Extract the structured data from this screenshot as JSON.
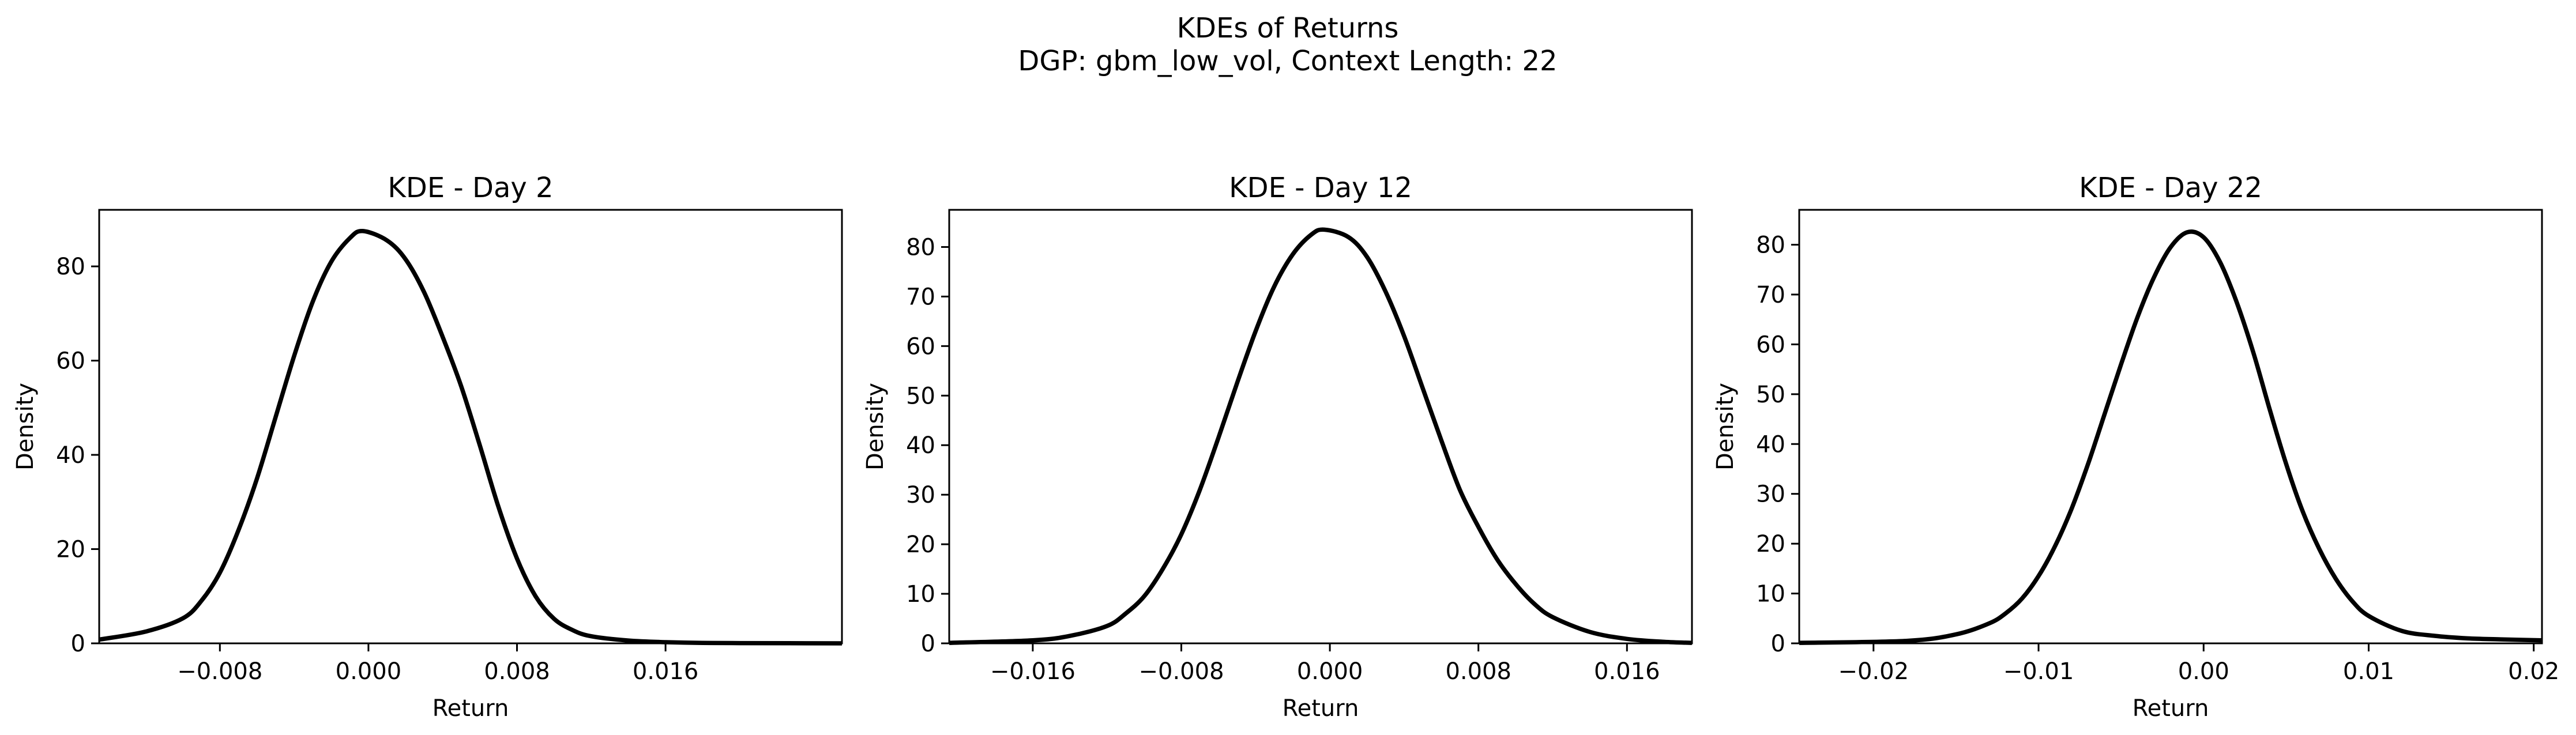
{
  "figure": {
    "title": "KDEs of Returns",
    "subtitle": "DGP: gbm_low_vol, Context Length: 22"
  },
  "chart_data": [
    {
      "type": "line",
      "title": "KDE - Day 2",
      "xlabel": "Return",
      "ylabel": "Density",
      "xlim": [
        -0.0145,
        0.0255
      ],
      "ylim": [
        0,
        92
      ],
      "xticks": [
        -0.008,
        0.0,
        0.008,
        0.016
      ],
      "xtick_labels": [
        "−0.008",
        "0.000",
        "0.008",
        "0.016"
      ],
      "yticks": [
        0,
        20,
        40,
        60,
        80
      ],
      "ytick_labels": [
        "0",
        "20",
        "40",
        "60",
        "80"
      ],
      "grid": false,
      "series": [
        {
          "color": "#000000",
          "x": [
            -0.0145,
            -0.012,
            -0.01,
            -0.009,
            -0.008,
            -0.007,
            -0.006,
            -0.005,
            -0.004,
            -0.003,
            -0.002,
            -0.001,
            -0.0003,
            0.001,
            0.002,
            0.003,
            0.004,
            0.005,
            0.006,
            0.007,
            0.008,
            0.009,
            0.01,
            0.011,
            0.012,
            0.014,
            0.016,
            0.018,
            0.02,
            0.0255
          ],
          "y": [
            0.8,
            2.5,
            5.3,
            9.0,
            15.0,
            24.0,
            35.0,
            48.0,
            61.0,
            72.5,
            81.0,
            86.0,
            87.5,
            85.5,
            81.5,
            74.5,
            65.0,
            54.5,
            42.0,
            29.0,
            18.0,
            10.0,
            5.2,
            2.8,
            1.5,
            0.6,
            0.25,
            0.1,
            0.05,
            0.0
          ]
        }
      ]
    },
    {
      "type": "line",
      "title": "KDE - Day 12",
      "xlabel": "Return",
      "ylabel": "Density",
      "xlim": [
        -0.0205,
        0.0195
      ],
      "ylim": [
        0,
        87.5
      ],
      "xticks": [
        -0.016,
        -0.008,
        0.0,
        0.008,
        0.016
      ],
      "xtick_labels": [
        "−0.016",
        "−0.008",
        "0.000",
        "0.008",
        "0.016"
      ],
      "yticks": [
        0,
        10,
        20,
        30,
        40,
        50,
        60,
        70,
        80
      ],
      "ytick_labels": [
        "0",
        "10",
        "20",
        "30",
        "40",
        "50",
        "60",
        "70",
        "80"
      ],
      "grid": false,
      "series": [
        {
          "color": "#000000",
          "x": [
            -0.0205,
            -0.016,
            -0.014,
            -0.012,
            -0.011,
            -0.01,
            -0.009,
            -0.008,
            -0.007,
            -0.006,
            -0.005,
            -0.004,
            -0.003,
            -0.002,
            -0.001,
            -0.0003,
            0.001,
            0.002,
            0.003,
            0.004,
            0.005,
            0.006,
            0.007,
            0.008,
            0.009,
            0.01,
            0.011,
            0.012,
            0.014,
            0.016,
            0.018,
            0.0195
          ],
          "y": [
            0.1,
            0.6,
            1.5,
            3.5,
            6.0,
            9.5,
            15.0,
            22.0,
            31.0,
            41.5,
            52.5,
            63.0,
            72.0,
            78.5,
            82.5,
            83.5,
            82.0,
            78.0,
            71.0,
            62.0,
            51.5,
            41.0,
            31.0,
            23.5,
            17.0,
            12.0,
            8.0,
            5.3,
            2.3,
            0.9,
            0.3,
            0.1
          ]
        }
      ]
    },
    {
      "type": "line",
      "title": "KDE - Day 22",
      "xlabel": "Return",
      "ylabel": "Density",
      "xlim": [
        -0.0245,
        0.0205
      ],
      "ylim": [
        0,
        87
      ],
      "xticks": [
        -0.02,
        -0.01,
        0.0,
        0.01,
        0.02
      ],
      "xtick_labels": [
        "−0.02",
        "−0.01",
        "0.00",
        "0.01",
        "0.02"
      ],
      "yticks": [
        0,
        10,
        20,
        30,
        40,
        50,
        60,
        70,
        80
      ],
      "ytick_labels": [
        "0",
        "10",
        "20",
        "30",
        "40",
        "50",
        "60",
        "70",
        "80"
      ],
      "grid": false,
      "series": [
        {
          "color": "#000000",
          "x": [
            -0.0245,
            -0.018,
            -0.015,
            -0.013,
            -0.012,
            -0.011,
            -0.01,
            -0.009,
            -0.008,
            -0.007,
            -0.006,
            -0.005,
            -0.004,
            -0.003,
            -0.002,
            -0.001,
            0.0,
            0.001,
            0.002,
            0.003,
            0.004,
            0.005,
            0.006,
            0.007,
            0.008,
            0.009,
            0.01,
            0.012,
            0.014,
            0.016,
            0.018,
            0.0205
          ],
          "y": [
            0.1,
            0.5,
            1.8,
            4.0,
            6.0,
            9.0,
            13.5,
            19.5,
            27.0,
            36.0,
            46.0,
            56.0,
            65.5,
            73.5,
            79.5,
            82.5,
            81.5,
            76.5,
            68.5,
            58.5,
            47.0,
            36.0,
            26.5,
            19.0,
            13.0,
            8.5,
            5.5,
            2.5,
            1.5,
            1.0,
            0.8,
            0.6
          ]
        }
      ]
    }
  ]
}
